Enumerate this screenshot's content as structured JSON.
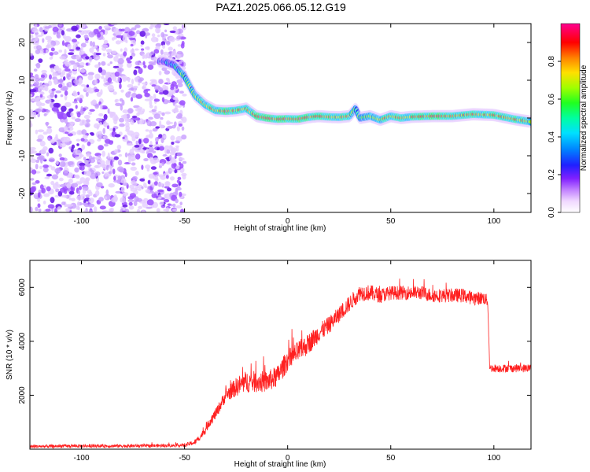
{
  "page_title": "PAZ1.2025.066.05.12.G19",
  "colors": {
    "snr_line": "#ff2020",
    "scatter_noise": "#9b30ff",
    "ridge_core": "#ff0000",
    "colormap": [
      "#ffffff",
      "#e8c8ff",
      "#c890ff",
      "#9040ff",
      "#4020ff",
      "#0060ff",
      "#00c8ff",
      "#00ffc0",
      "#40ff40",
      "#c0ff00",
      "#ffc000",
      "#ff4000",
      "#ff0000",
      "#ff00a0"
    ]
  },
  "chart_data": [
    {
      "type": "heatmap",
      "title": "PAZ1.2025.066.05.12.G19",
      "xlabel": "Height of straight line (km)",
      "ylabel": "Frequency (Hz)",
      "xlim": [
        -125,
        118
      ],
      "ylim": [
        -25,
        25
      ],
      "x_ticks": [
        -100,
        -50,
        0,
        50,
        100
      ],
      "y_ticks": [
        -20,
        -10,
        0,
        10,
        20
      ],
      "colorbar": {
        "label": "Normalized spectral amplitude",
        "range": [
          0,
          1
        ],
        "ticks": [
          0.0,
          0.2,
          0.4,
          0.6,
          0.8
        ]
      },
      "noise_region": {
        "x_from": -125,
        "x_to": -50,
        "frequency_range": [
          -25,
          25
        ],
        "amplitude_approx": 0.3
      },
      "ridge": {
        "x": [
          -60,
          -55,
          -50,
          -45,
          -40,
          -35,
          -30,
          -25,
          -20,
          -15,
          -10,
          -5,
          0,
          5,
          10,
          15,
          20,
          25,
          30,
          33,
          35,
          40,
          45,
          50,
          55,
          60,
          70,
          80,
          90,
          100,
          110,
          118
        ],
        "frequency": [
          15,
          14,
          11,
          6,
          3.5,
          2,
          1.8,
          2,
          2.5,
          0.5,
          0,
          -0.3,
          -0.2,
          -0.3,
          0.2,
          0.5,
          0.3,
          0.2,
          0.5,
          2.5,
          0,
          0.5,
          -0.5,
          0.5,
          0,
          0.3,
          0.5,
          0.5,
          1,
          0.8,
          -0.3,
          -1
        ],
        "amplitude": [
          0.3,
          0.45,
          0.6,
          0.65,
          0.75,
          0.8,
          0.85,
          0.8,
          0.75,
          0.85,
          0.9,
          0.9,
          0.9,
          0.9,
          0.85,
          0.9,
          0.85,
          0.85,
          0.8,
          0.5,
          0.6,
          0.7,
          0.75,
          0.8,
          0.85,
          0.8,
          0.9,
          0.85,
          0.8,
          0.8,
          0.85,
          0.7
        ]
      }
    },
    {
      "type": "line",
      "xlabel": "Height of straight line (km)",
      "ylabel": "SNR (10 * v/v)",
      "xlim": [
        -125,
        118
      ],
      "ylim": [
        0,
        7000
      ],
      "x_ticks": [
        -100,
        -50,
        0,
        50,
        100
      ],
      "y_ticks": [
        2000,
        4000,
        6000
      ],
      "series": [
        {
          "x": [
            -125,
            -100,
            -80,
            -60,
            -50,
            -45,
            -42,
            -40,
            -38,
            -35,
            -30,
            -25,
            -20,
            -15,
            -10,
            -5,
            0,
            5,
            10,
            15,
            20,
            25,
            30,
            35,
            40,
            45,
            50,
            55,
            60,
            65,
            70,
            75,
            80,
            85,
            90,
            95,
            97,
            98,
            100,
            105,
            110,
            118
          ],
          "values": [
            100,
            120,
            120,
            130,
            150,
            250,
            500,
            700,
            1000,
            1300,
            2000,
            2300,
            2500,
            2500,
            2500,
            2700,
            3300,
            3600,
            3900,
            4300,
            4600,
            5000,
            5400,
            5800,
            5800,
            5700,
            5800,
            5800,
            5800,
            5800,
            5700,
            5700,
            5700,
            5700,
            5600,
            5600,
            5500,
            3000,
            3000,
            3000,
            3000,
            3000
          ],
          "noise": [
            60,
            60,
            60,
            60,
            60,
            100,
            120,
            150,
            180,
            200,
            250,
            350,
            400,
            400,
            400,
            400,
            400,
            400,
            380,
            350,
            320,
            300,
            300,
            300,
            300,
            280,
            260,
            260,
            260,
            260,
            260,
            260,
            260,
            260,
            260,
            240,
            220,
            150,
            150,
            150,
            150,
            150
          ]
        }
      ]
    }
  ]
}
